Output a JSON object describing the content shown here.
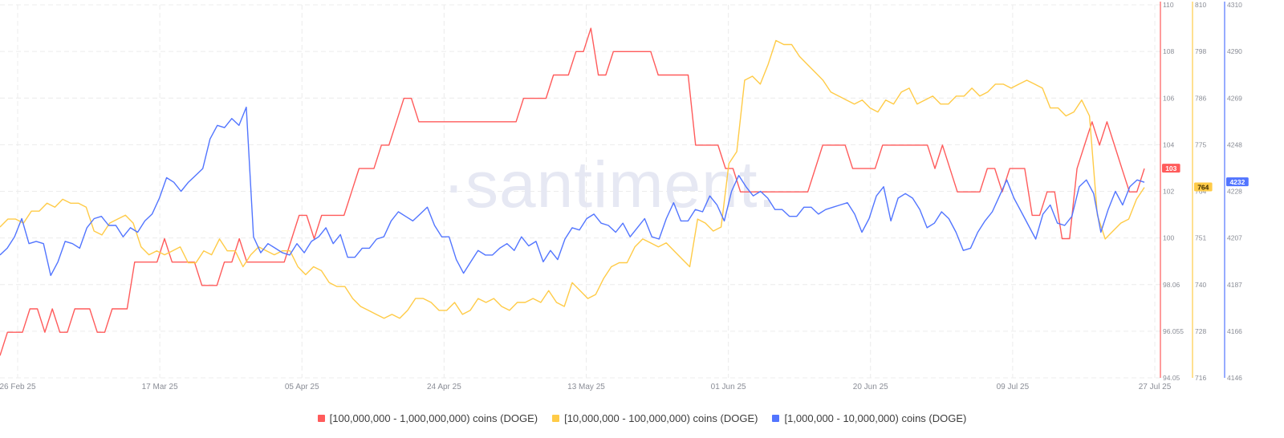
{
  "watermark": "·santiment.",
  "colors": {
    "red": "#ff5b5b",
    "yellow": "#ffcb47",
    "blue": "#5275ff",
    "grid": "#ececec",
    "axis_text": "#8a8d96"
  },
  "chart_data": {
    "type": "line",
    "x_ticks": [
      "26 Feb 25",
      "17 Mar 25",
      "05 Apr 25",
      "24 Apr 25",
      "13 May 25",
      "01 Jun 25",
      "20 Jun 25",
      "09 Jul 25",
      "27 Jul 25"
    ],
    "x_range": [
      "2025-02-26",
      "2025-07-27"
    ],
    "legend_position": "bottom",
    "grid": true,
    "series": [
      {
        "name": "[100,000,000 - 1,000,000,000) coins (DOGE)",
        "color": "#ff5b5b",
        "axis": "red",
        "y_ticks": [
          "110",
          "108",
          "106",
          "104",
          "102",
          "100",
          "98.06",
          "96.055",
          "94.05"
        ],
        "ylim": [
          94.05,
          110
        ],
        "last_label": "103",
        "values": [
          95,
          96,
          96,
          96,
          97,
          97,
          96,
          97,
          96,
          96,
          97,
          97,
          97,
          96,
          96,
          97,
          97,
          97,
          99,
          99,
          99,
          99,
          100,
          99,
          99,
          99,
          99,
          98,
          98,
          98,
          99,
          99,
          100,
          99,
          99,
          99,
          99,
          99,
          99,
          100,
          101,
          101,
          100,
          101,
          101,
          101,
          101,
          102,
          103,
          103,
          103,
          104,
          104,
          105,
          106,
          106,
          105,
          105,
          105,
          105,
          105,
          105,
          105,
          105,
          105,
          105,
          105,
          105,
          105,
          105,
          106,
          106,
          106,
          106,
          107,
          107,
          107,
          108,
          108,
          109,
          107,
          107,
          108,
          108,
          108,
          108,
          108,
          108,
          107,
          107,
          107,
          107,
          107,
          104,
          104,
          104,
          104,
          103,
          103,
          102,
          102,
          102,
          102,
          102,
          102,
          102,
          102,
          102,
          102,
          103,
          104,
          104,
          104,
          104,
          103,
          103,
          103,
          103,
          104,
          104,
          104,
          104,
          104,
          104,
          104,
          103,
          104,
          103,
          102,
          102,
          102,
          102,
          103,
          103,
          102,
          103,
          103,
          103,
          101,
          101,
          102,
          102,
          100,
          100,
          103,
          104,
          105,
          104,
          105,
          104,
          103,
          102,
          102,
          103
        ]
      },
      {
        "name": "[10,000,000 - 100,000,000) coins (DOGE)",
        "color": "#ffcb47",
        "axis": "yellow",
        "y_ticks": [
          "810",
          "798",
          "786",
          "775",
          "764",
          "751",
          "740",
          "728",
          "716"
        ],
        "ylim": [
          716,
          810
        ],
        "last_label": "764",
        "values": [
          754,
          756,
          756,
          755,
          758,
          758,
          760,
          759,
          761,
          760,
          760,
          759,
          753,
          752,
          755,
          756,
          757,
          755,
          749,
          747,
          748,
          747,
          748,
          749,
          745,
          745,
          748,
          747,
          751,
          748,
          748,
          744,
          747,
          749,
          748,
          747,
          748,
          748,
          744,
          742,
          744,
          743,
          740,
          739,
          739,
          736,
          734,
          733,
          732,
          731,
          732,
          731,
          733,
          736,
          736,
          735,
          733,
          733,
          735,
          732,
          733,
          736,
          735,
          736,
          734,
          733,
          735,
          735,
          736,
          735,
          738,
          735,
          734,
          740,
          738,
          736,
          737,
          741,
          744,
          745,
          745,
          749,
          751,
          750,
          749,
          750,
          748,
          746,
          744,
          756,
          755,
          753,
          754,
          770,
          773,
          791,
          792,
          790,
          795,
          801,
          800,
          800,
          797,
          795,
          793,
          791,
          788,
          787,
          786,
          785,
          786,
          784,
          783,
          786,
          785,
          788,
          789,
          785,
          786,
          787,
          785,
          785,
          787,
          787,
          789,
          787,
          788,
          790,
          790,
          789,
          790,
          791,
          790,
          789,
          784,
          784,
          782,
          783,
          786,
          782,
          757,
          751,
          753,
          755,
          756,
          761,
          764
        ]
      },
      {
        "name": "[1,000,000 - 10,000,000) coins (DOGE)",
        "color": "#5275ff",
        "axis": "blue",
        "y_ticks": [
          "4310",
          "4290",
          "4269",
          "4248",
          "4228",
          "4207",
          "4187",
          "4166",
          "4146"
        ],
        "ylim": [
          4146,
          4310
        ],
        "last_label": "4232",
        "values": [
          4200,
          4203,
          4208,
          4216,
          4205,
          4206,
          4205,
          4191,
          4197,
          4206,
          4205,
          4203,
          4212,
          4216,
          4217,
          4213,
          4213,
          4208,
          4212,
          4210,
          4215,
          4218,
          4225,
          4234,
          4232,
          4228,
          4232,
          4235,
          4238,
          4251,
          4257,
          4256,
          4260,
          4257,
          4265,
          4208,
          4201,
          4205,
          4203,
          4201,
          4200,
          4205,
          4201,
          4206,
          4208,
          4212,
          4205,
          4209,
          4199,
          4199,
          4203,
          4203,
          4207,
          4208,
          4215,
          4219,
          4217,
          4215,
          4218,
          4221,
          4213,
          4208,
          4208,
          4198,
          4192,
          4197,
          4202,
          4200,
          4200,
          4203,
          4205,
          4202,
          4208,
          4204,
          4206,
          4197,
          4202,
          4198,
          4207,
          4212,
          4211,
          4216,
          4218,
          4214,
          4213,
          4210,
          4214,
          4208,
          4212,
          4216,
          4208,
          4207,
          4216,
          4223,
          4215,
          4215,
          4220,
          4219,
          4226,
          4222,
          4215,
          4228,
          4235,
          4230,
          4226,
          4228,
          4225,
          4220,
          4220,
          4217,
          4217,
          4221,
          4221,
          4218,
          4220,
          4221,
          4222,
          4223,
          4218,
          4210,
          4216,
          4226,
          4230,
          4215,
          4225,
          4227,
          4225,
          4220,
          4212,
          4214,
          4219,
          4216,
          4210,
          4202,
          4203,
          4210,
          4215,
          4219,
          4226,
          4233,
          4225,
          4219,
          4213,
          4207,
          4218,
          4222,
          4214,
          4213,
          4217,
          4230,
          4233,
          4227,
          4210,
          4220,
          4228,
          4222,
          4230,
          4233,
          4232
        ]
      }
    ]
  }
}
